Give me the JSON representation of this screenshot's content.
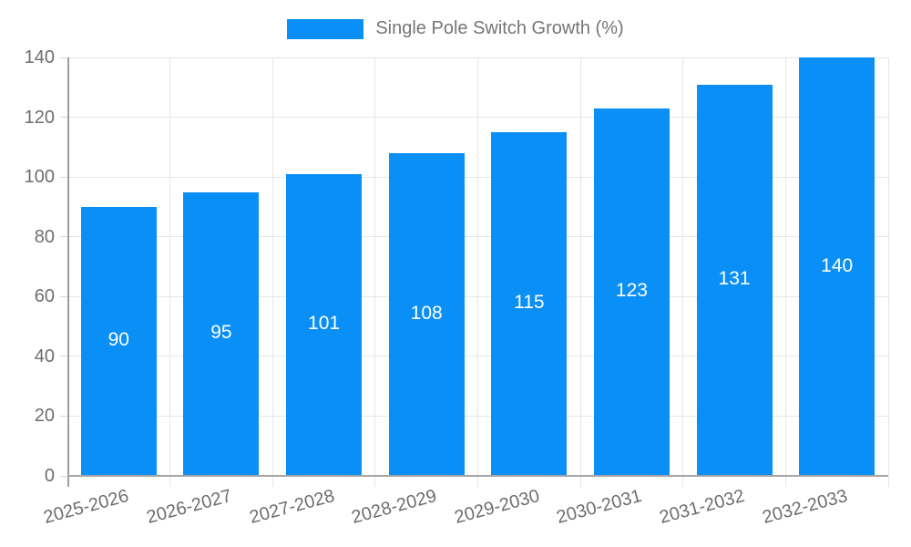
{
  "chart_data": {
    "type": "bar",
    "legend": "Single Pole Switch Growth (%)",
    "legend_position": "top",
    "categories": [
      "2025-2026",
      "2026-2027",
      "2027-2028",
      "2028-2029",
      "2029-2030",
      "2030-2031",
      "2031-2032",
      "2032-2033"
    ],
    "values": [
      90,
      95,
      101,
      108,
      115,
      123,
      131,
      140
    ],
    "xlabel": "",
    "ylabel": "",
    "ylim": [
      0,
      140
    ],
    "yticks": [
      0,
      20,
      40,
      60,
      80,
      100,
      120,
      140
    ],
    "grid": true,
    "bar_color": "#0a8ff7",
    "value_label_color": "#ffffff",
    "axis_label_color": "#6e6e6e",
    "legend_text_color": "#757575",
    "gridline_color": "#e6e6e6",
    "axis_line_color": "#9e9e9e"
  }
}
